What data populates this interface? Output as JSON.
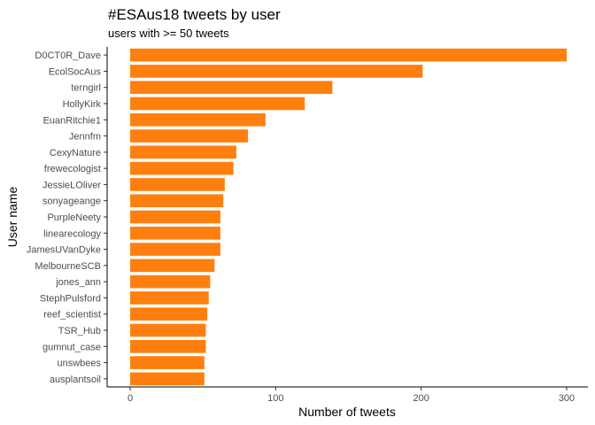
{
  "chart_data": {
    "type": "bar",
    "orientation": "horizontal",
    "title": "#ESAus18 tweets by user",
    "subtitle": "users with >= 50 tweets",
    "xlabel": "Number of tweets",
    "ylabel": "User name",
    "xlim": [
      0,
      313
    ],
    "xticks": [
      0,
      100,
      200,
      300
    ],
    "grid": false,
    "legend": "none",
    "bar_color": "#FF7F0E",
    "categories": [
      "D0CT0R_Dave",
      "EcolSocAus",
      "terngirl",
      "HollyKirk",
      "EuanRitchie1",
      "Jennfm",
      "CexyNature",
      "frewecologist",
      "JessieLOliver",
      "sonyageange",
      "PurpleNeety",
      "linearecology",
      "JamesUVanDyke",
      "MelbourneSCB",
      "jones_ann",
      "StephPulsford",
      "reef_scientist",
      "TSR_Hub",
      "gumnut_case",
      "unswbees",
      "ausplantsoil"
    ],
    "values": [
      300,
      201,
      139,
      120,
      93,
      81,
      73,
      71,
      65,
      64,
      62,
      62,
      62,
      58,
      55,
      54,
      53,
      52,
      52,
      51,
      51
    ]
  }
}
